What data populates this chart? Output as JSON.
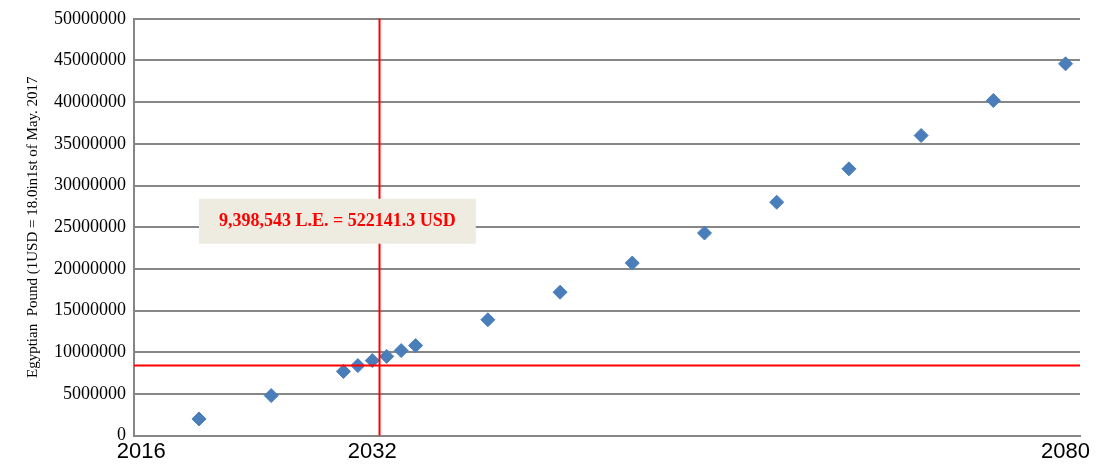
{
  "chart_data": {
    "type": "scatter",
    "ylabel": "Egyptian  Pound (1USD = 18.0in1st of May. 2017",
    "x": [
      2020,
      2025,
      2030,
      2031,
      2032,
      2033,
      2034,
      2035,
      2040,
      2045,
      2050,
      2055,
      2060,
      2065,
      2070,
      2075,
      2080
    ],
    "series": [
      {
        "color": "#4a7ebb",
        "values": [
          2000000,
          4800000,
          7700000,
          8400000,
          9000000,
          9500000,
          10200000,
          10800000,
          13900000,
          17200000,
          20700000,
          24300000,
          28000000,
          32000000,
          36000000,
          40200000,
          44600000
        ]
      }
    ],
    "xlim": [
      2015.5,
      2081
    ],
    "xticks": [
      2016,
      2032,
      2080
    ],
    "ylim": [
      0,
      50000000
    ],
    "yticks": [
      0,
      5000000,
      10000000,
      15000000,
      20000000,
      25000000,
      30000000,
      35000000,
      40000000,
      45000000,
      50000000
    ],
    "grid": "y",
    "legend": false,
    "marker": "diamond",
    "ref_lines": [
      {
        "axis": "y",
        "value": 8400000,
        "color": "#ff0000"
      },
      {
        "axis": "x",
        "value": 2032.5,
        "color": "#ff0000"
      }
    ],
    "annotations": [
      "9,398,543 L.E. = 522141.3 USD"
    ]
  }
}
